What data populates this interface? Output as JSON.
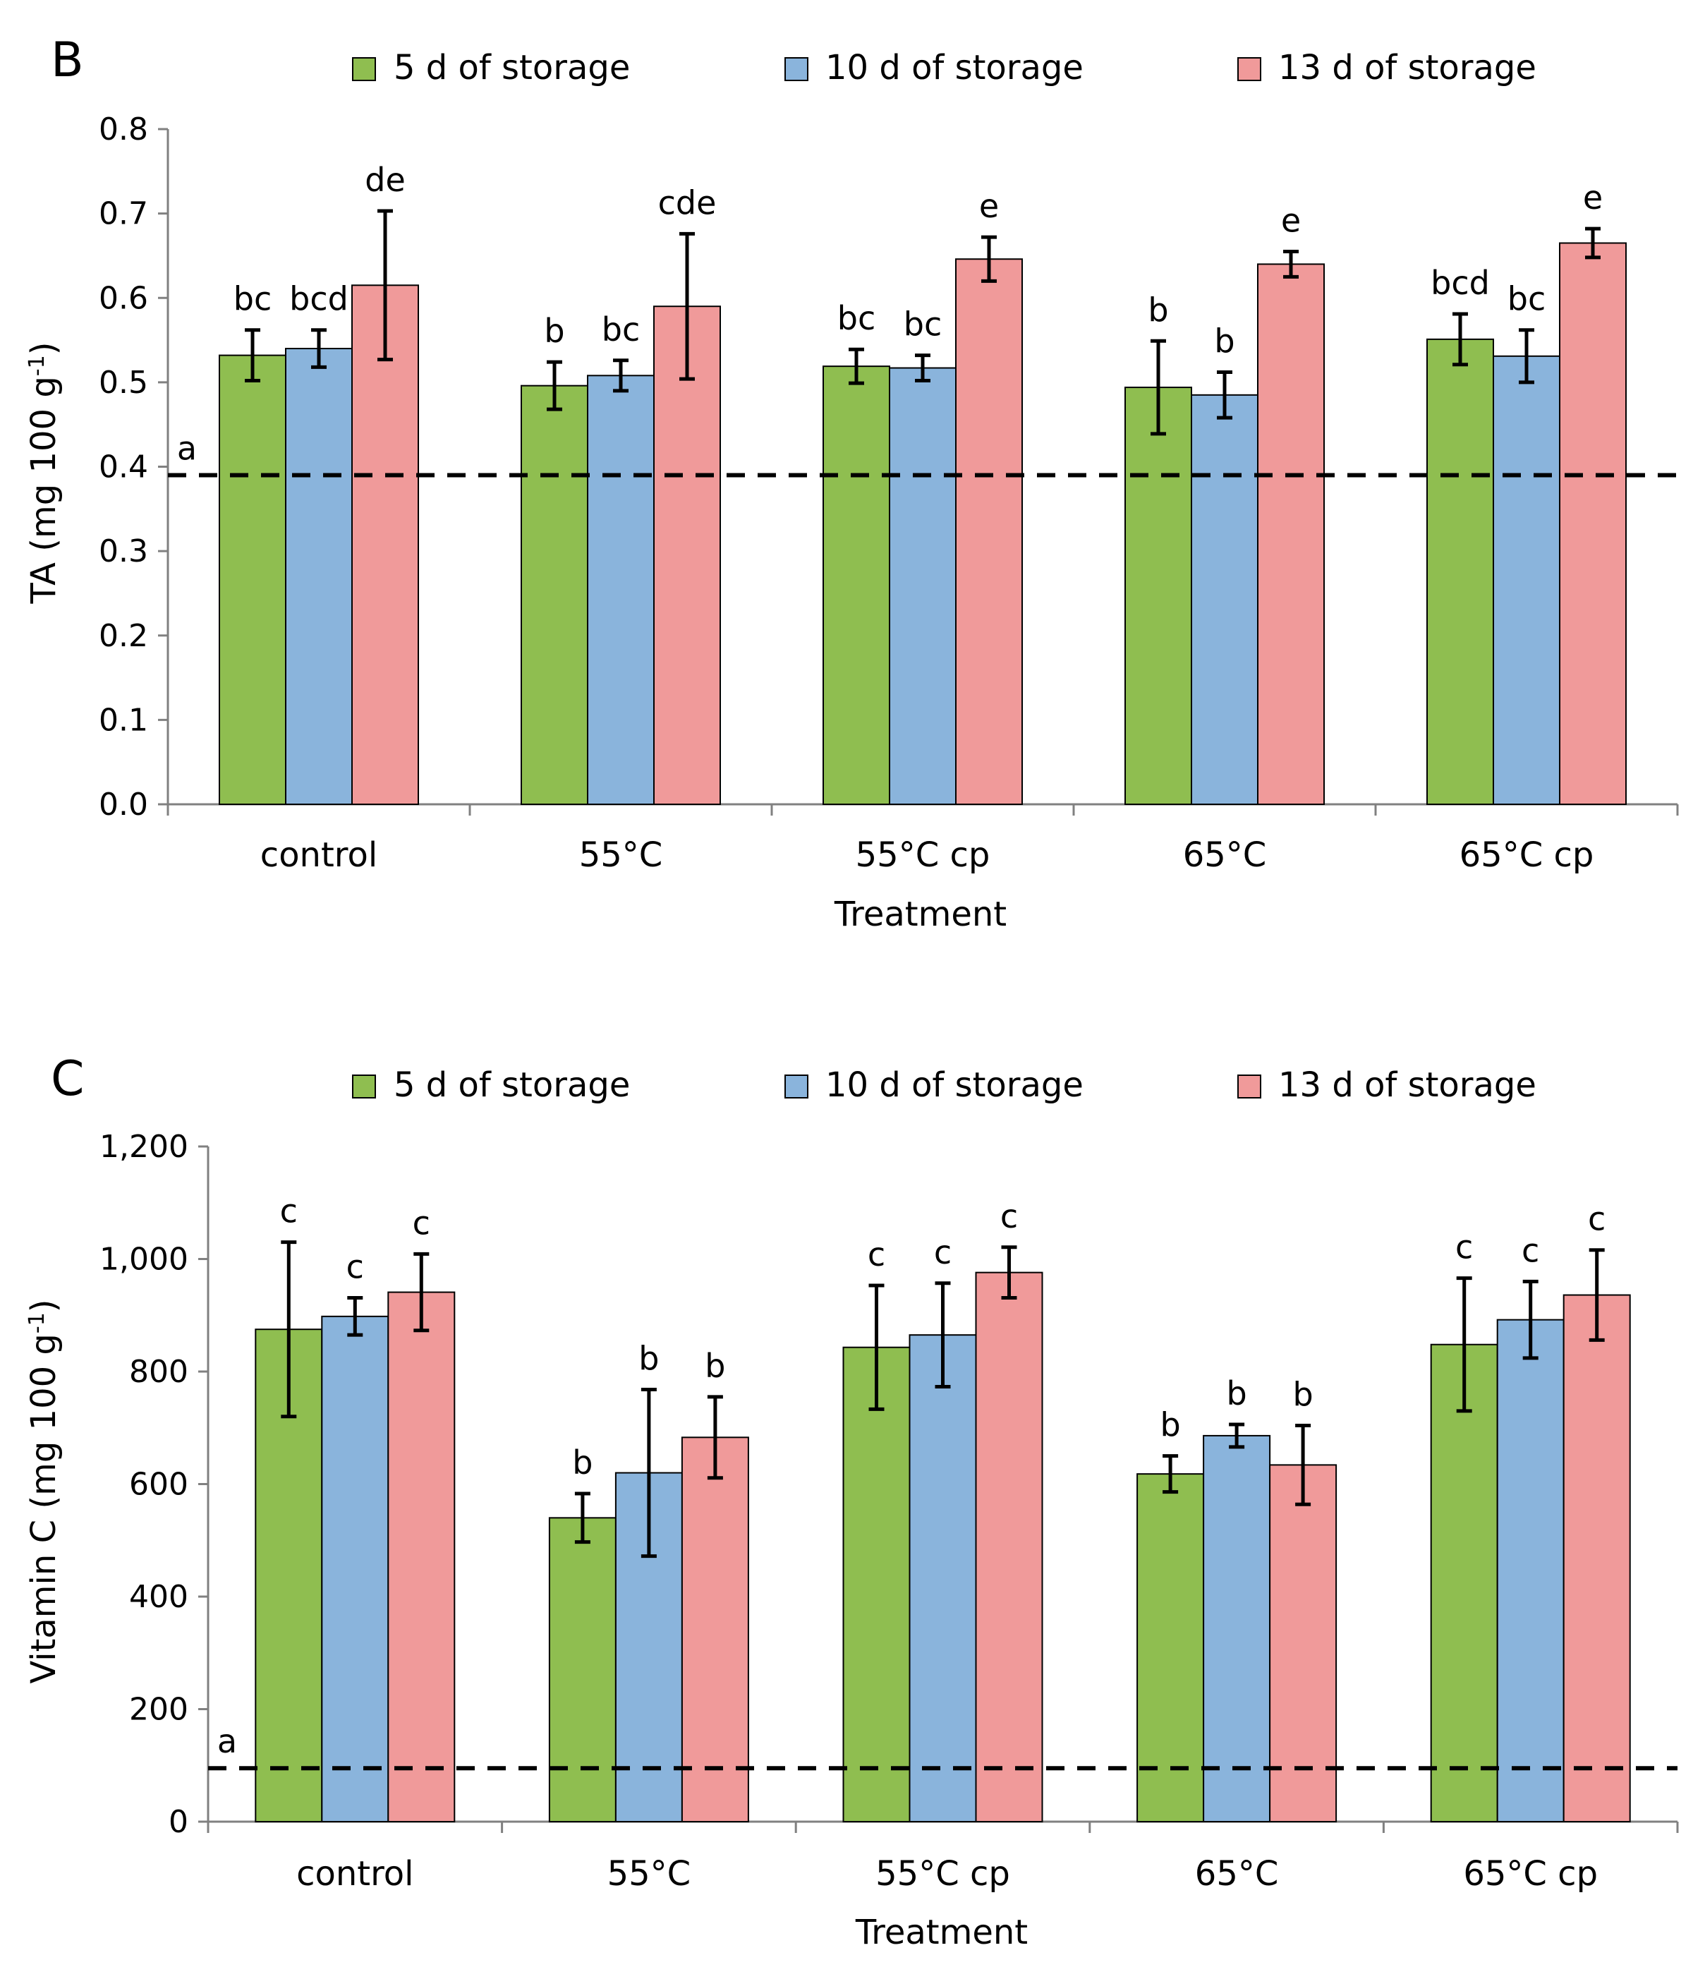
{
  "chart_data": [
    {
      "type": "bar",
      "panel_label": "B",
      "title": "",
      "xlabel": "Treatment",
      "ylabel": "TA (mg 100 g",
      "ylabel_sup": "-1",
      "ylabel_close": ")",
      "ylim": [
        0,
        0.8
      ],
      "yticks": [
        "0.0",
        "0.1",
        "0.2",
        "0.3",
        "0.4",
        "0.5",
        "0.6",
        "0.7",
        "0.8"
      ],
      "categories": [
        "control",
        "55°C",
        "55°C cp",
        "65°C",
        "65°C cp"
      ],
      "series": [
        {
          "name": "5 d of storage",
          "color": "#8fbe50",
          "values": [
            0.532,
            0.496,
            0.519,
            0.494,
            0.551
          ],
          "errors": [
            0.03,
            0.028,
            0.02,
            0.055,
            0.03
          ],
          "labels": [
            "bc",
            "b",
            "bc",
            "b",
            "bcd"
          ]
        },
        {
          "name": "10 d of storage",
          "color": "#8ab4dc",
          "values": [
            0.54,
            0.508,
            0.517,
            0.485,
            0.531
          ],
          "errors": [
            0.022,
            0.018,
            0.015,
            0.027,
            0.031
          ],
          "labels": [
            "bcd",
            "bc",
            "bc",
            "b",
            "bc"
          ]
        },
        {
          "name": "13 d of storage",
          "color": "#f09a9a",
          "values": [
            0.615,
            0.59,
            0.646,
            0.64,
            0.665
          ],
          "errors": [
            0.088,
            0.086,
            0.026,
            0.015,
            0.017
          ],
          "labels": [
            "de",
            "cde",
            "e",
            "e",
            "e"
          ]
        }
      ],
      "reference_line": {
        "value": 0.39,
        "label": "a",
        "style": "dashed"
      },
      "legend_position": "top"
    },
    {
      "type": "bar",
      "panel_label": "C",
      "title": "",
      "xlabel": "Treatment",
      "ylabel": "Vitamin C (mg 100 g",
      "ylabel_sup": "-1",
      "ylabel_close": ")",
      "ylim": [
        0,
        1200
      ],
      "yticks": [
        "0",
        "200",
        "400",
        "600",
        "800",
        "1,000",
        "1,200"
      ],
      "categories": [
        "control",
        "55°C",
        "55°C cp",
        "65°C",
        "65°C cp"
      ],
      "series": [
        {
          "name": "5 d of storage",
          "color": "#8fbe50",
          "values": [
            875,
            540,
            843,
            618,
            848
          ],
          "errors": [
            155,
            43,
            110,
            32,
            118
          ],
          "labels": [
            "c",
            "b",
            "c",
            "b",
            "c"
          ]
        },
        {
          "name": "10 d of storage",
          "color": "#8ab4dc",
          "values": [
            898,
            620,
            865,
            686,
            892
          ],
          "errors": [
            33,
            148,
            92,
            20,
            68
          ],
          "labels": [
            "c",
            "b",
            "c",
            "b",
            "c"
          ]
        },
        {
          "name": "13 d of storage",
          "color": "#f09a9a",
          "values": [
            941,
            683,
            976,
            634,
            936
          ],
          "errors": [
            68,
            72,
            45,
            70,
            80
          ],
          "labels": [
            "c",
            "b",
            "c",
            "b",
            "c"
          ]
        }
      ],
      "reference_line": {
        "value": 95,
        "label": "a",
        "style": "dashed"
      },
      "legend_position": "top"
    }
  ]
}
